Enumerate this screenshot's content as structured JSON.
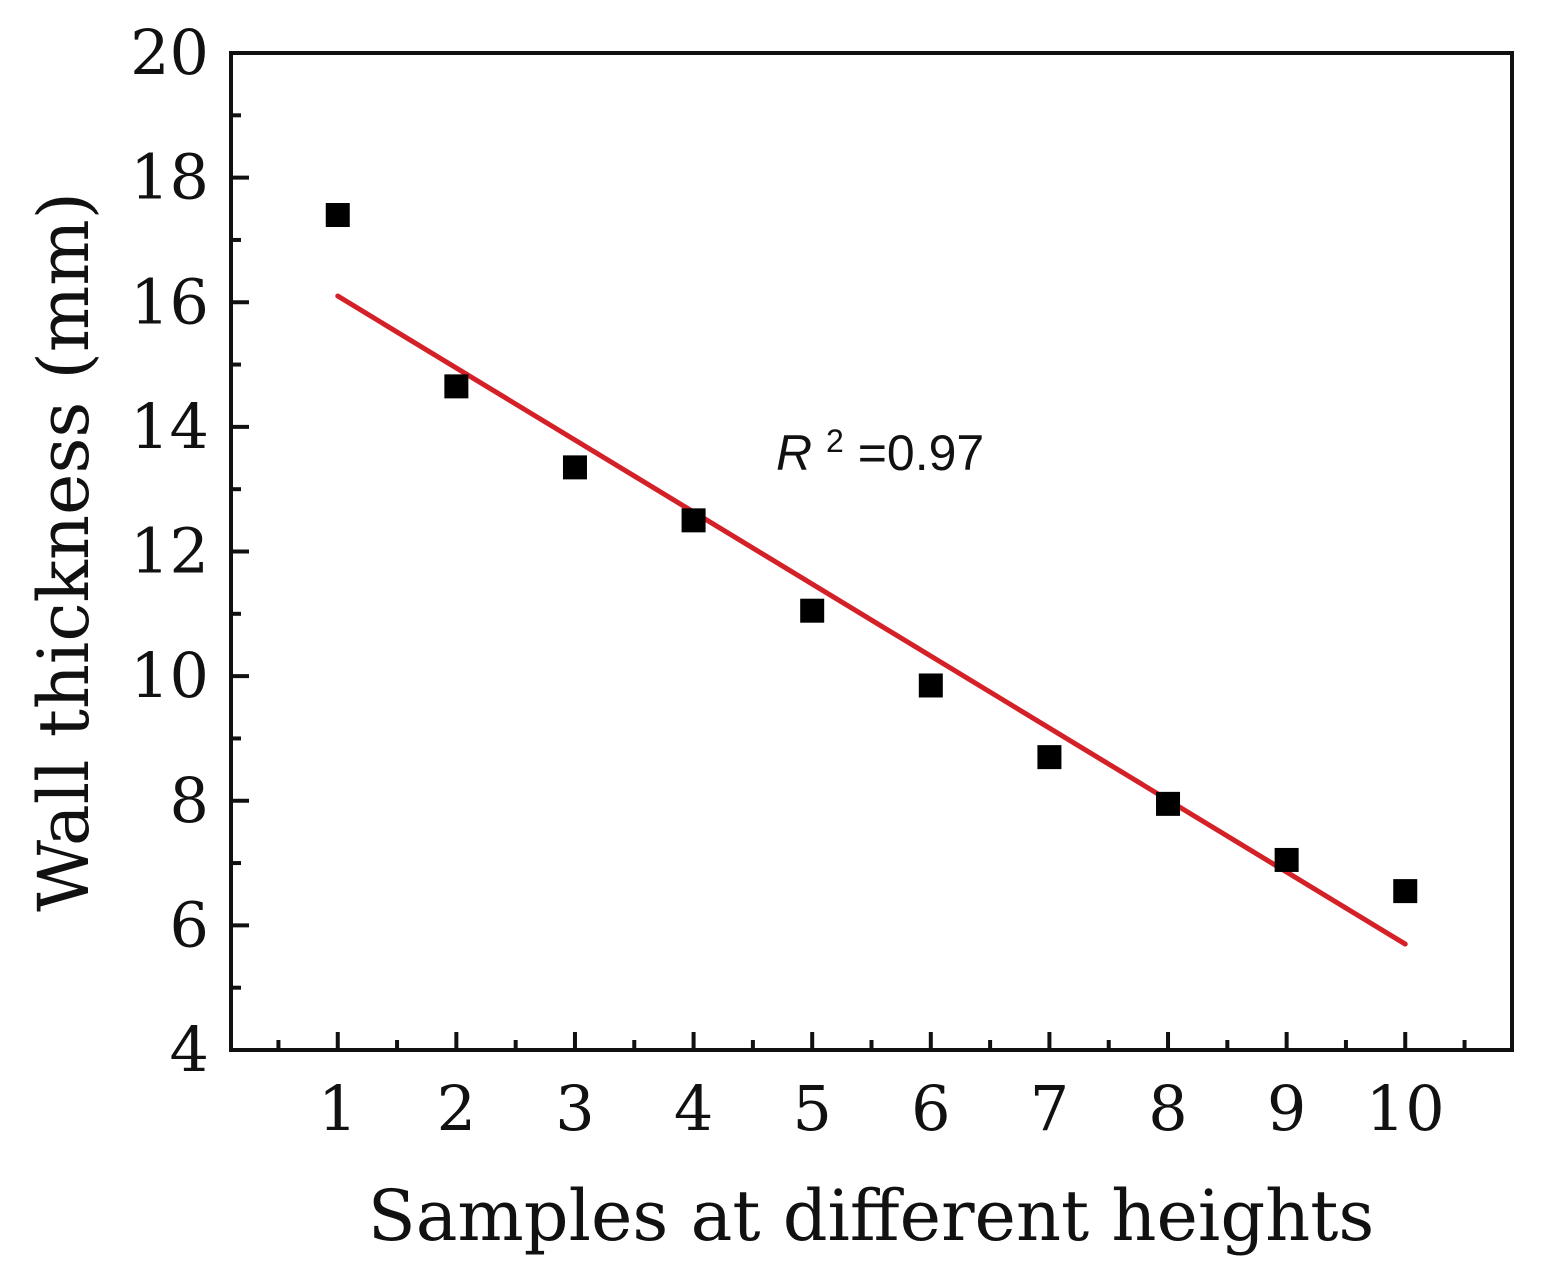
{
  "chart_data": {
    "type": "scatter",
    "title": "",
    "xlabel": "Samples at different heights",
    "ylabel": "Wall thickness (mm)",
    "xlim": [
      0.1,
      10.9
    ],
    "ylim": [
      4,
      20
    ],
    "x_ticks": [
      1,
      2,
      3,
      4,
      5,
      6,
      7,
      8,
      9,
      10
    ],
    "x_tick_labels": [
      "1",
      "2",
      "3",
      "4",
      "5",
      "6",
      "7",
      "8",
      "9",
      "10"
    ],
    "y_ticks": [
      4,
      6,
      8,
      10,
      12,
      14,
      16,
      18,
      20
    ],
    "y_tick_labels": [
      "4",
      "6",
      "8",
      "10",
      "12",
      "14",
      "16",
      "18",
      "20"
    ],
    "grid": false,
    "series": [
      {
        "name": "Wall thickness",
        "marker": "square",
        "color": "#000000",
        "x": [
          1,
          2,
          3,
          4,
          5,
          6,
          7,
          8,
          9,
          10
        ],
        "y": [
          17.4,
          14.65,
          13.35,
          12.5,
          11.05,
          9.85,
          8.7,
          7.95,
          7.05,
          6.55
        ]
      }
    ],
    "fit_line": {
      "name": "Linear fit",
      "color": "#d42027",
      "x": [
        1,
        10
      ],
      "y": [
        16.1,
        5.7
      ]
    },
    "annotation": {
      "prefix": "R",
      "superscript": "2",
      "suffix": "=0.97"
    }
  }
}
